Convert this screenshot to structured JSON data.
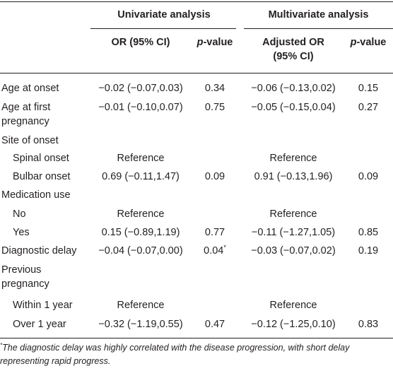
{
  "header": {
    "univariate": "Univariate analysis",
    "multivariate": "Multivariate analysis",
    "or": "OR (95% CI)",
    "p_italic": "p",
    "p_rest": "-value",
    "adj_line1": "Adjusted OR",
    "adj_line2": "(95% CI)"
  },
  "rows": {
    "age_onset": {
      "label": "Age at onset",
      "or": "−0.02 (−0.07,0.03)",
      "p1": "0.34",
      "aor": "−0.06 (−0.13,0.02)",
      "p2": "0.15"
    },
    "age_preg": {
      "label1": "Age at first",
      "label2": "pregnancy",
      "or": "−0.01 (−0.10,0.07)",
      "p1": "0.75",
      "aor": "−0.05 (−0.15,0.04)",
      "p2": "0.27"
    },
    "site": {
      "label": "Site of onset"
    },
    "spinal": {
      "label": "Spinal onset",
      "or": "Reference",
      "aor": "Reference"
    },
    "bulbar": {
      "label": "Bulbar onset",
      "or": "0.69 (−0.11,1.47)",
      "p1": "0.09",
      "aor": "0.91 (−0.13,1.96)",
      "p2": "0.09"
    },
    "med": {
      "label": "Medication use"
    },
    "no": {
      "label": "No",
      "or": "Reference",
      "aor": "Reference"
    },
    "yes": {
      "label": "Yes",
      "or": "0.15 (−0.89,1.19)",
      "p1": "0.77",
      "aor": "−0.11 (−1.27,1.05)",
      "p2": "0.85"
    },
    "delay": {
      "label": "Diagnostic delay",
      "or": "−0.04 (−0.07,0.00)",
      "p1": "0.04",
      "p1_mark": "*",
      "aor": "−0.03 (−0.07,0.02)",
      "p2": "0.19"
    },
    "prev": {
      "label1": "Previous",
      "label2": "pregnancy"
    },
    "within": {
      "label": "Within 1 year",
      "or": "Reference",
      "aor": "Reference"
    },
    "over": {
      "label": "Over 1 year",
      "or": "−0.32 (−1.19,0.55)",
      "p1": "0.47",
      "aor": "−0.12 (−1.25,0.10)",
      "p2": "0.83"
    }
  },
  "footnote": {
    "mark": "*",
    "line1": "The diagnostic delay was highly correlated with the disease progression, with short delay",
    "line2": "representing rapid progress."
  }
}
